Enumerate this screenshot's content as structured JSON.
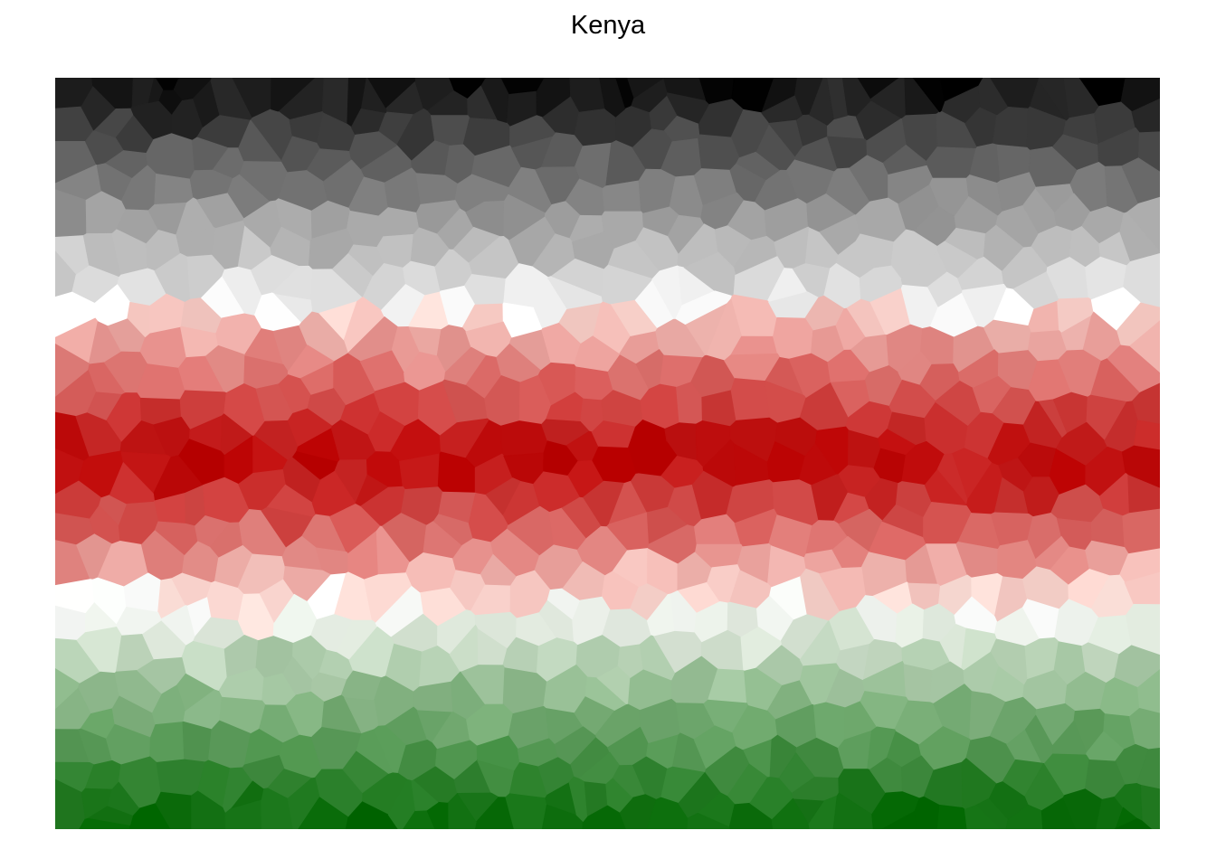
{
  "figure": {
    "title": "Kenya"
  },
  "flag": {
    "bands": [
      {
        "name": "black",
        "color_dark": "#000000",
        "color_light": "#d9d9d9"
      },
      {
        "name": "white",
        "color_dark": "#ffffff",
        "color_light": "#ffffff"
      },
      {
        "name": "red",
        "color_dark": "#bb0000",
        "color_light": "#fde3dc"
      },
      {
        "name": "white",
        "color_dark": "#ffffff",
        "color_light": "#ffffff"
      },
      {
        "name": "green",
        "color_dark": "#006600",
        "color_light": "#dfe9dc"
      }
    ]
  }
}
